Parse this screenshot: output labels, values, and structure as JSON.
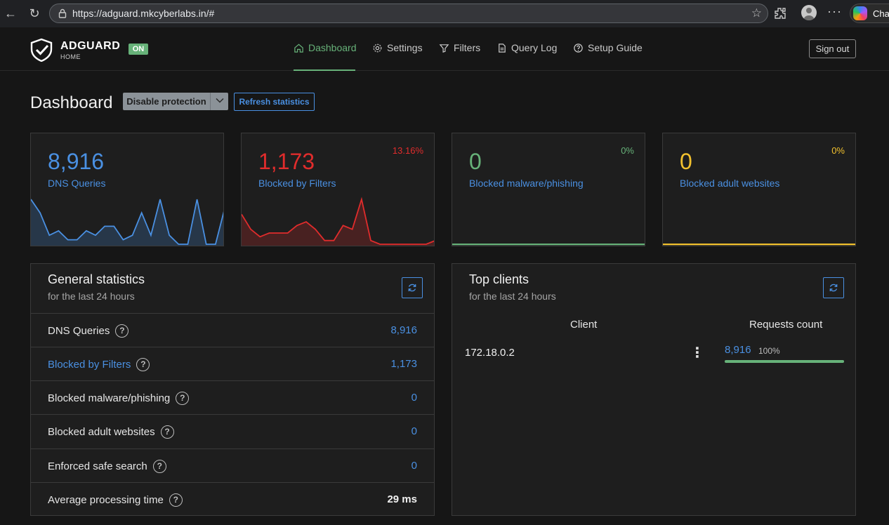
{
  "browser": {
    "url": "https://adguard.mkcyberlabs.in/#",
    "copilot_label": "Chat"
  },
  "brand": {
    "name": "ADGUARD",
    "sub": "HOME",
    "status_badge": "ON"
  },
  "nav": {
    "items": [
      {
        "label": "Dashboard",
        "icon": "home-icon",
        "active": true
      },
      {
        "label": "Settings",
        "icon": "gear-icon",
        "active": false
      },
      {
        "label": "Filters",
        "icon": "filter-icon",
        "active": false
      },
      {
        "label": "Query Log",
        "icon": "document-icon",
        "active": false
      },
      {
        "label": "Setup Guide",
        "icon": "help-circle-icon",
        "active": false
      }
    ],
    "sign_out": "Sign out"
  },
  "page": {
    "title": "Dashboard",
    "disable_protection": "Disable protection",
    "refresh_statistics": "Refresh statistics"
  },
  "stat_cards": [
    {
      "value": "8,916",
      "label": "DNS Queries",
      "percent": "",
      "color": "#4a90e2",
      "sparkline": [
        10,
        7,
        2,
        3,
        1,
        1,
        3,
        2,
        4,
        4,
        1,
        2,
        7,
        2,
        10,
        2,
        0,
        0,
        10,
        0,
        0,
        8
      ]
    },
    {
      "value": "1,173",
      "label": "Blocked by Filters",
      "percent": "13.16%",
      "color": "#e02c2c",
      "sparkline": [
        8,
        4,
        2,
        3,
        3,
        3,
        5,
        6,
        4,
        1,
        1,
        5,
        4,
        12,
        1,
        0,
        0,
        0,
        0,
        0,
        0,
        1
      ]
    },
    {
      "value": "0",
      "label": "Blocked malware/phishing",
      "percent": "0%",
      "color": "#67b279",
      "sparkline": [
        0,
        0,
        0,
        0,
        0,
        0,
        0,
        0,
        0,
        0,
        0,
        0
      ]
    },
    {
      "value": "0",
      "label": "Blocked adult websites",
      "percent": "0%",
      "color": "#f2c12e",
      "sparkline": [
        0,
        0,
        0,
        0,
        0,
        0,
        0,
        0,
        0,
        0,
        0,
        0
      ]
    }
  ],
  "general_stats": {
    "title": "General statistics",
    "subtitle": "for the last 24 hours",
    "rows": [
      {
        "label": "DNS Queries",
        "value": "8,916"
      },
      {
        "label": "Blocked by Filters",
        "value": "1,173"
      },
      {
        "label": "Blocked malware/phishing",
        "value": "0"
      },
      {
        "label": "Blocked adult websites",
        "value": "0"
      },
      {
        "label": "Enforced safe search",
        "value": "0"
      },
      {
        "label": "Average processing time",
        "value": "29 ms"
      }
    ]
  },
  "top_clients": {
    "title": "Top clients",
    "subtitle": "for the last 24 hours",
    "col_client": "Client",
    "col_requests": "Requests count",
    "rows": [
      {
        "client": "172.18.0.2",
        "count": "8,916",
        "percent": "100%",
        "fraction": 1.0
      }
    ]
  }
}
